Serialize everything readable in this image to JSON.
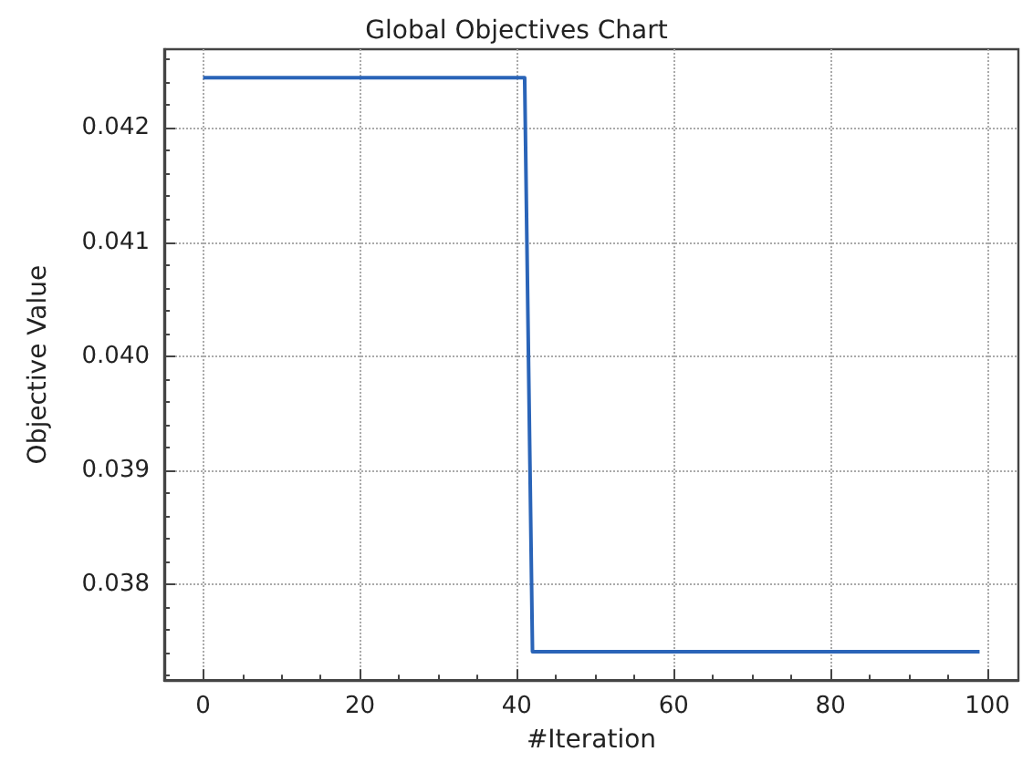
{
  "chart_data": {
    "type": "line",
    "title": "Global Objectives Chart",
    "xlabel": "#Iteration",
    "ylabel": "Objective Value",
    "x": [
      0,
      41,
      42,
      99
    ],
    "series": [
      {
        "color": "#2a64b8",
        "values": [
          0.04244,
          0.04244,
          0.03741,
          0.03741
        ]
      }
    ],
    "xlim": [
      -4.95,
      103.95
    ],
    "xticks": [
      0,
      20,
      40,
      60,
      80,
      100
    ],
    "ylim": [
      0.03716,
      0.04269
    ],
    "yticks": [
      0.038,
      0.039,
      {
        "value": 0.04,
        "label": "0.040"
      },
      0.041,
      0.042
    ],
    "grid": true,
    "marker": "none",
    "line_style": "solid"
  }
}
